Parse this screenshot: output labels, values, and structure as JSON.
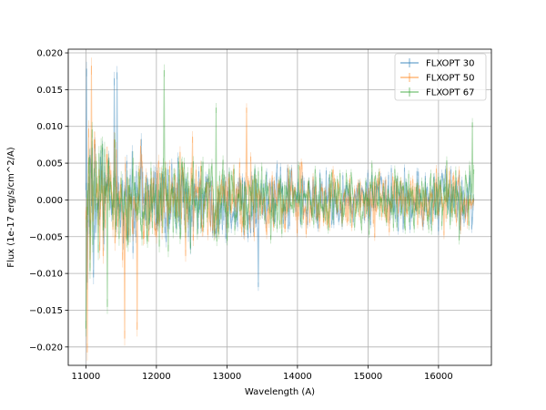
{
  "chart_data": {
    "type": "line",
    "title": "",
    "xlabel": "Wavelength (A)",
    "ylabel": "Flux (1e-17 erg/s/cm^2/A)",
    "xlim": [
      10750,
      16750
    ],
    "ylim": [
      -0.0225,
      0.0205
    ],
    "xticks": [
      11000,
      12000,
      13000,
      14000,
      15000,
      16000
    ],
    "yticks": [
      -0.02,
      -0.015,
      -0.01,
      -0.005,
      0.0,
      0.005,
      0.01,
      0.015,
      0.02
    ],
    "ytick_labels": [
      "−0.020",
      "−0.015",
      "−0.010",
      "−0.005",
      "0.000",
      "0.005",
      "0.010",
      "0.015",
      "0.020"
    ],
    "grid": true,
    "legend_position": "top-right",
    "x_start": 11000,
    "x_end": 16500,
    "series": [
      {
        "name": "FLXOPT 30",
        "color": "#1f77b4",
        "alpha": 0.4,
        "noise_profile": [
          [
            11000,
            0.0055
          ],
          [
            12000,
            0.0045
          ],
          [
            13000,
            0.0035
          ],
          [
            14000,
            0.0028
          ],
          [
            15000,
            0.0026
          ],
          [
            16000,
            0.003
          ],
          [
            16500,
            0.003
          ]
        ],
        "peaks": [
          {
            "x": 11010,
            "y": 0.0178
          },
          {
            "x": 11020,
            "y": -0.0112
          },
          {
            "x": 11110,
            "y": -0.0105
          },
          {
            "x": 11400,
            "y": 0.0165
          },
          {
            "x": 11440,
            "y": 0.0173
          },
          {
            "x": 13450,
            "y": -0.0118
          }
        ]
      },
      {
        "name": "FLXOPT 50",
        "color": "#ff7f0e",
        "alpha": 0.4,
        "noise_profile": [
          [
            11000,
            0.0065
          ],
          [
            12000,
            0.005
          ],
          [
            13000,
            0.0038
          ],
          [
            14000,
            0.003
          ],
          [
            15000,
            0.0028
          ],
          [
            16000,
            0.003
          ],
          [
            16500,
            0.003
          ]
        ],
        "peaks": [
          {
            "x": 11020,
            "y": -0.0207
          },
          {
            "x": 11080,
            "y": 0.0182
          },
          {
            "x": 11550,
            "y": -0.0188
          },
          {
            "x": 11730,
            "y": -0.0176
          },
          {
            "x": 13280,
            "y": 0.0125
          },
          {
            "x": 14000,
            "y": -0.0045
          }
        ]
      },
      {
        "name": "FLXOPT 67",
        "color": "#2ca02c",
        "alpha": 0.4,
        "noise_profile": [
          [
            11000,
            0.006
          ],
          [
            12000,
            0.0048
          ],
          [
            13000,
            0.0036
          ],
          [
            14000,
            0.0029
          ],
          [
            15000,
            0.0027
          ],
          [
            16000,
            0.0032
          ],
          [
            16500,
            0.0035
          ]
        ],
        "peaks": [
          {
            "x": 11000,
            "y": -0.0175
          },
          {
            "x": 12110,
            "y": 0.0176
          },
          {
            "x": 11300,
            "y": -0.0145
          },
          {
            "x": 12850,
            "y": 0.0125
          },
          {
            "x": 16480,
            "y": 0.0105
          }
        ]
      }
    ]
  }
}
